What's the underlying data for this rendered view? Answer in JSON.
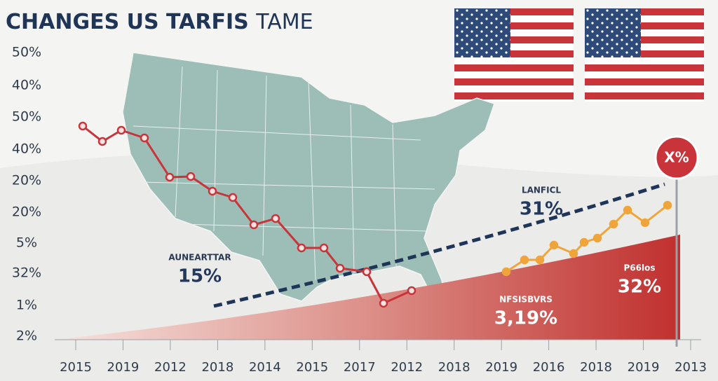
{
  "title": {
    "main": "CHANGES US TARFIS",
    "light": "TAME"
  },
  "y_labels": [
    "50%",
    "40%",
    "50%",
    "40%",
    "20%",
    "20%",
    "5%",
    "32%",
    "1%",
    "2%"
  ],
  "x_labels": [
    "2015",
    "2019",
    "2012",
    "2018",
    "2014",
    "2015",
    "2017",
    "2012",
    "2018",
    "2019",
    "2016",
    "2018",
    "2019",
    "2013"
  ],
  "annotations": [
    {
      "label": "AUNEARTTAR",
      "value": "15%"
    },
    {
      "label": "LANFICL",
      "value": "31%"
    },
    {
      "label": "NFSISBVRS",
      "value": "3,19%"
    },
    {
      "label": "P66los",
      "value": "32%"
    }
  ],
  "badge": "X%"
}
